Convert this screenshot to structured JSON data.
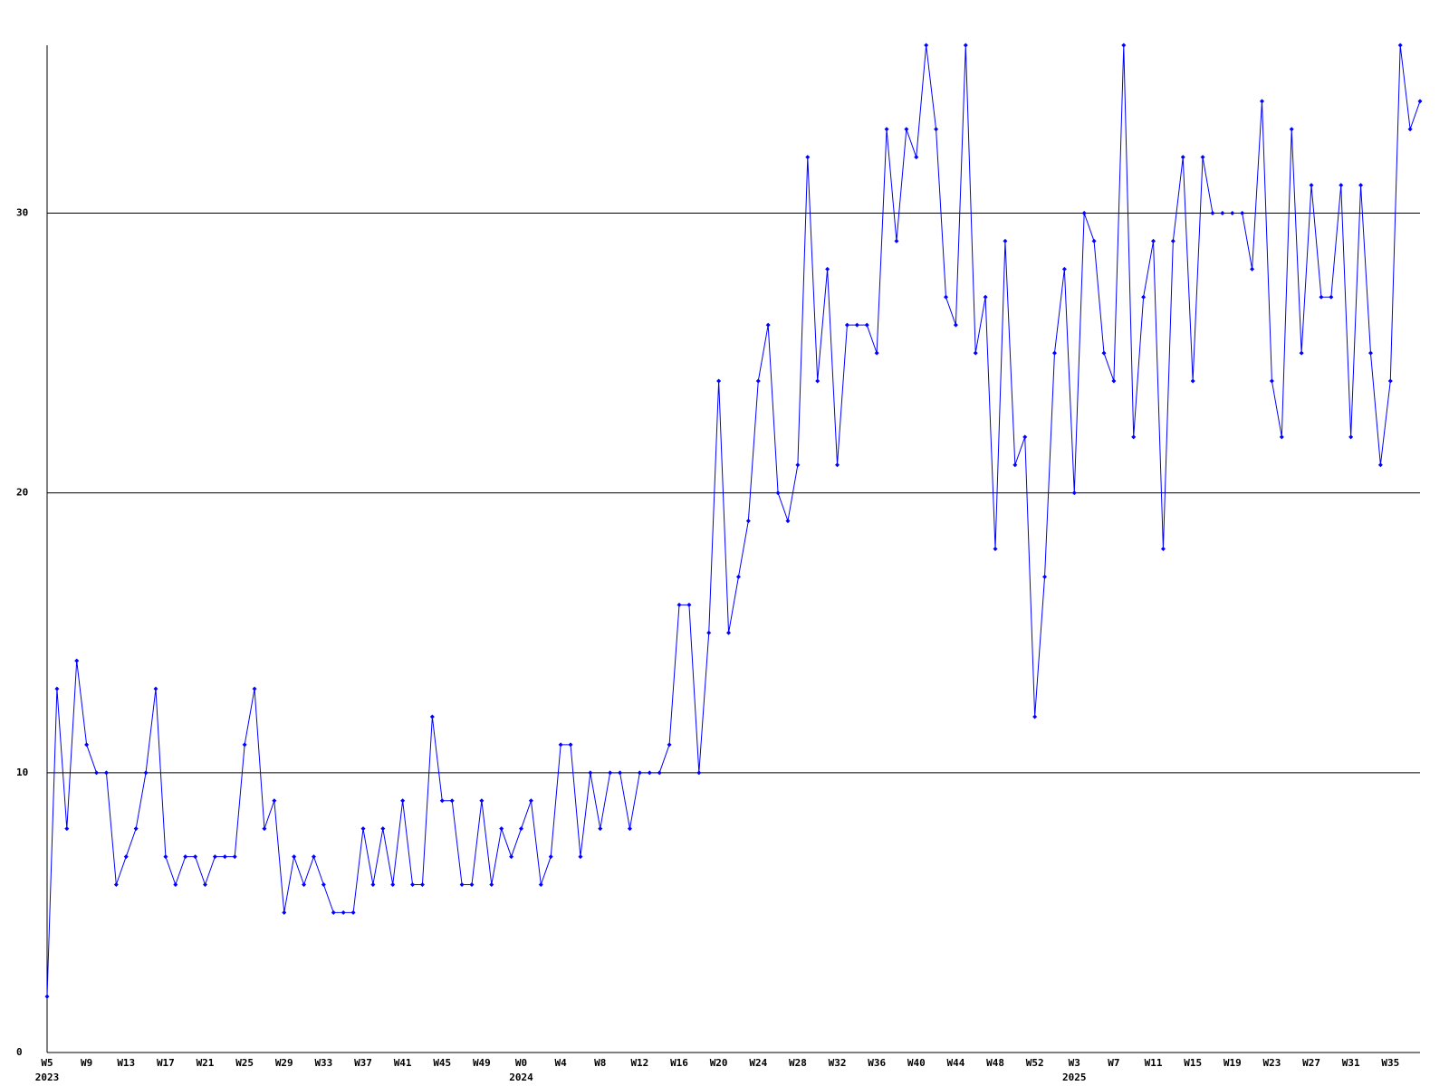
{
  "chart_data": {
    "type": "line",
    "categories": [
      "W5",
      null,
      null,
      null,
      "W9",
      null,
      null,
      null,
      "W13",
      null,
      null,
      null,
      "W17",
      null,
      null,
      null,
      "W21",
      null,
      null,
      null,
      "W25",
      null,
      null,
      null,
      "W29",
      null,
      null,
      null,
      "W33",
      null,
      null,
      null,
      "W37",
      null,
      null,
      null,
      "W41",
      null,
      null,
      null,
      "W45",
      null,
      null,
      null,
      "W49",
      null,
      null,
      null,
      "W0",
      null,
      null,
      null,
      "W4",
      null,
      null,
      null,
      "W8",
      null,
      null,
      null,
      "W12",
      null,
      null,
      null,
      "W16",
      null,
      null,
      null,
      "W20",
      null,
      null,
      null,
      "W24",
      null,
      null,
      null,
      "W28",
      null,
      null,
      null,
      "W32",
      null,
      null,
      null,
      "W36",
      null,
      null,
      null,
      "W40",
      null,
      null,
      null,
      "W44",
      null,
      null,
      null,
      "W48",
      null,
      null,
      null,
      "W52",
      null,
      null,
      null,
      "W3",
      null,
      null,
      null,
      "W7",
      null,
      null,
      null,
      "W11",
      null,
      null,
      null,
      "W15",
      null,
      null,
      null,
      "W19",
      null,
      null,
      null,
      "W23",
      null,
      null,
      null,
      "W27",
      null,
      null,
      null,
      "W31",
      null,
      null,
      null,
      "W35",
      null,
      null,
      null
    ],
    "category_years": [
      "2023",
      null,
      null,
      null,
      null,
      null,
      null,
      null,
      null,
      null,
      null,
      null,
      null,
      null,
      null,
      null,
      null,
      null,
      null,
      null,
      null,
      null,
      null,
      null,
      null,
      null,
      null,
      null,
      null,
      null,
      null,
      null,
      null,
      null,
      null,
      null,
      null,
      null,
      null,
      null,
      null,
      null,
      null,
      null,
      null,
      null,
      null,
      null,
      "2024",
      null,
      null,
      null,
      null,
      null,
      null,
      null,
      null,
      null,
      null,
      null,
      null,
      null,
      null,
      null,
      null,
      null,
      null,
      null,
      null,
      null,
      null,
      null,
      null,
      null,
      null,
      null,
      null,
      null,
      null,
      null,
      null,
      null,
      null,
      null,
      null,
      null,
      null,
      null,
      null,
      null,
      null,
      null,
      null,
      null,
      null,
      null,
      null,
      null,
      null,
      null,
      null,
      null,
      null,
      null,
      "2025",
      null,
      null,
      null,
      null,
      null,
      null,
      null,
      null,
      null,
      null,
      null,
      null,
      null,
      null,
      null,
      null,
      null,
      null,
      null,
      null,
      null,
      null,
      null,
      null,
      null,
      null,
      null,
      null,
      null,
      null,
      null,
      null,
      null,
      null,
      null
    ],
    "values": [
      2,
      13,
      8,
      14,
      11,
      10,
      10,
      6,
      7,
      8,
      10,
      13,
      7,
      6,
      7,
      7,
      6,
      7,
      7,
      7,
      11,
      13,
      8,
      9,
      5,
      7,
      6,
      7,
      6,
      5,
      5,
      5,
      8,
      6,
      8,
      6,
      9,
      6,
      6,
      12,
      9,
      9,
      6,
      6,
      9,
      6,
      8,
      7,
      8,
      9,
      6,
      7,
      11,
      11,
      7,
      10,
      8,
      10,
      10,
      8,
      10,
      10,
      10,
      11,
      16,
      16,
      10,
      15,
      24,
      15,
      17,
      19,
      24,
      26,
      20,
      19,
      21,
      32,
      24,
      28,
      21,
      26,
      26,
      26,
      25,
      33,
      29,
      33,
      32,
      36,
      33,
      27,
      26,
      36,
      25,
      27,
      18,
      29,
      21,
      22,
      12,
      17,
      25,
      28,
      20,
      30,
      29,
      25,
      24,
      36,
      22,
      27,
      29,
      18,
      29,
      32,
      24,
      32,
      30,
      30,
      30,
      30,
      28,
      34,
      24,
      22,
      33,
      25,
      31,
      27,
      27,
      31,
      22,
      31,
      25,
      21,
      24,
      36,
      33,
      34
    ],
    "color": "#0000ff",
    "ylim": [
      0,
      36
    ],
    "yticks": [
      0,
      10,
      20,
      30
    ],
    "grid": true
  }
}
